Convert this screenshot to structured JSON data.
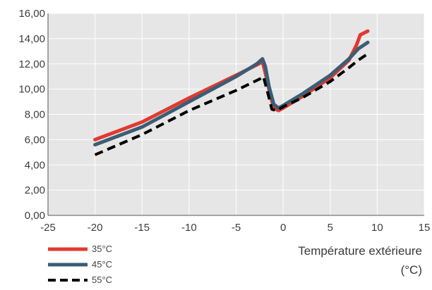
{
  "chart_data": {
    "type": "line",
    "xlabel": [
      "Température extérieure",
      "(°C)"
    ],
    "ylabel": "",
    "xlim": [
      -25,
      15
    ],
    "ylim": [
      0,
      16
    ],
    "x_ticks": [
      -25,
      -20,
      -15,
      -10,
      -5,
      0,
      5,
      10,
      15
    ],
    "x_tick_labels": [
      "-25",
      "-20",
      "-15",
      "-10",
      "-5",
      "0",
      "5",
      "10",
      "15"
    ],
    "y_ticks": [
      0,
      2,
      4,
      6,
      8,
      10,
      12,
      14,
      16
    ],
    "y_tick_labels": [
      "0,00",
      "2,00",
      "4,00",
      "6,00",
      "8,00",
      "10,00",
      "12,00",
      "14,00",
      "16,00"
    ],
    "grid": true,
    "legend_position": "bottom-left",
    "plot_background": "#e6e6e6",
    "series": [
      {
        "name": "35°C",
        "color": "#e03a2f",
        "style": "solid",
        "points": [
          [
            -20,
            6.0
          ],
          [
            -15,
            7.4
          ],
          [
            -10,
            9.3
          ],
          [
            -5,
            11.1
          ],
          [
            -2.6,
            12.0
          ],
          [
            -2.2,
            12.2
          ],
          [
            -1.8,
            11.0
          ],
          [
            -1.4,
            9.6
          ],
          [
            -1.0,
            8.5
          ],
          [
            -0.5,
            8.3
          ],
          [
            0,
            8.5
          ],
          [
            2,
            9.4
          ],
          [
            5,
            10.9
          ],
          [
            7,
            12.3
          ],
          [
            7.8,
            13.5
          ],
          [
            8.2,
            14.3
          ],
          [
            9,
            14.6
          ]
        ]
      },
      {
        "name": "45°C",
        "color": "#3b5d75",
        "style": "solid",
        "points": [
          [
            -20,
            5.6
          ],
          [
            -15,
            7.0
          ],
          [
            -10,
            9.0
          ],
          [
            -5,
            11.0
          ],
          [
            -2.8,
            12.0
          ],
          [
            -2.2,
            12.4
          ],
          [
            -1.9,
            11.8
          ],
          [
            -1.5,
            10.2
          ],
          [
            -1.0,
            8.8
          ],
          [
            -0.5,
            8.5
          ],
          [
            0,
            8.7
          ],
          [
            2,
            9.6
          ],
          [
            5,
            11.1
          ],
          [
            7,
            12.4
          ],
          [
            8,
            13.2
          ],
          [
            9,
            13.7
          ]
        ]
      },
      {
        "name": "55°C",
        "color": "#000000",
        "style": "dashed",
        "points": [
          [
            -20,
            4.8
          ],
          [
            -15,
            6.4
          ],
          [
            -10,
            8.3
          ],
          [
            -5,
            9.9
          ],
          [
            -2.5,
            10.8
          ],
          [
            -2.1,
            11.0
          ],
          [
            -1.6,
            9.6
          ],
          [
            -1.2,
            8.4
          ],
          [
            -0.7,
            8.3
          ],
          [
            0,
            8.6
          ],
          [
            2,
            9.3
          ],
          [
            5,
            10.6
          ],
          [
            7,
            11.7
          ],
          [
            8,
            12.3
          ],
          [
            9,
            12.8
          ]
        ]
      }
    ]
  }
}
